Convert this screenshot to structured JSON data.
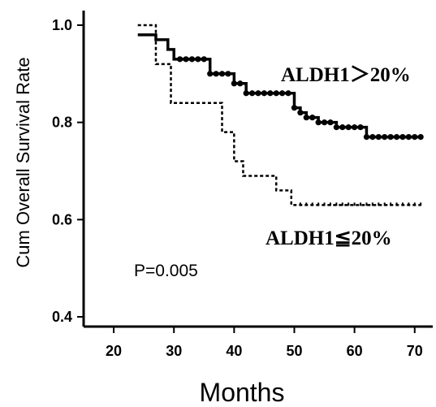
{
  "chart_data": {
    "type": "line",
    "title": "",
    "xlabel": "Months",
    "ylabel": "Cum Overall Survival Rate",
    "xlim": [
      15,
      73
    ],
    "ylim": [
      0.38,
      1.03
    ],
    "x_ticks": [
      "20",
      "30",
      "40",
      "50",
      "60",
      "70"
    ],
    "y_ticks": [
      "0.4",
      "0.6",
      "0.8",
      "1.0"
    ],
    "grid": false,
    "annotations": {
      "high_group": "ALDH1＞20%",
      "low_group": "ALDH1≦20%",
      "p_value": "P=0.005"
    },
    "series": [
      {
        "name": "ALDH1＞20%",
        "style": "solid",
        "censor_markers": "filled-circle",
        "x": [
          24,
          27,
          29,
          30,
          31,
          32,
          33,
          34,
          35,
          36,
          37,
          38,
          39,
          40,
          41,
          42,
          43,
          44,
          45,
          46,
          47,
          48,
          49,
          50,
          51,
          52,
          53,
          54,
          55,
          56,
          57,
          58,
          59,
          60,
          61,
          62,
          63,
          64,
          65,
          66,
          67,
          68,
          69,
          70,
          71
        ],
        "values": [
          0.98,
          0.97,
          0.95,
          0.93,
          0.93,
          0.93,
          0.93,
          0.93,
          0.93,
          0.9,
          0.9,
          0.9,
          0.9,
          0.88,
          0.88,
          0.86,
          0.86,
          0.86,
          0.86,
          0.86,
          0.86,
          0.86,
          0.86,
          0.83,
          0.82,
          0.81,
          0.81,
          0.8,
          0.8,
          0.8,
          0.79,
          0.79,
          0.79,
          0.79,
          0.79,
          0.77,
          0.77,
          0.77,
          0.77,
          0.77,
          0.77,
          0.77,
          0.77,
          0.77,
          0.77
        ],
        "censored_x": [
          31,
          32,
          33,
          34,
          35,
          36,
          37,
          38,
          39,
          40,
          41,
          42,
          43,
          44,
          45,
          46,
          47,
          48,
          49,
          50,
          51,
          52,
          53,
          54,
          55,
          56,
          57,
          58,
          59,
          60,
          61,
          62,
          63,
          64,
          65,
          66,
          67,
          68,
          69,
          70,
          71
        ]
      },
      {
        "name": "ALDH1≦20%",
        "style": "dashed",
        "censor_markers": "short-tick",
        "x": [
          24,
          28,
          30,
          40,
          42,
          48,
          50,
          71
        ],
        "values": [
          1.0,
          0.92,
          0.84,
          0.72,
          0.69,
          0.66,
          0.63,
          0.63
        ],
        "step_points": [
          [
            24,
            1.0
          ],
          [
            27,
            1.0
          ],
          [
            27,
            0.92
          ],
          [
            29.5,
            0.92
          ],
          [
            29.5,
            0.84
          ],
          [
            38,
            0.84
          ],
          [
            38,
            0.78
          ],
          [
            40,
            0.78
          ],
          [
            40,
            0.72
          ],
          [
            41.5,
            0.72
          ],
          [
            41.5,
            0.69
          ],
          [
            47,
            0.69
          ],
          [
            47,
            0.66
          ],
          [
            49.5,
            0.66
          ],
          [
            49.5,
            0.63
          ],
          [
            71,
            0.63
          ]
        ],
        "censored_x": [
          51,
          52,
          53,
          54,
          55,
          56,
          57,
          58,
          59,
          60,
          61,
          62,
          63,
          64,
          65,
          66,
          67,
          68,
          69,
          70,
          71
        ]
      }
    ]
  }
}
